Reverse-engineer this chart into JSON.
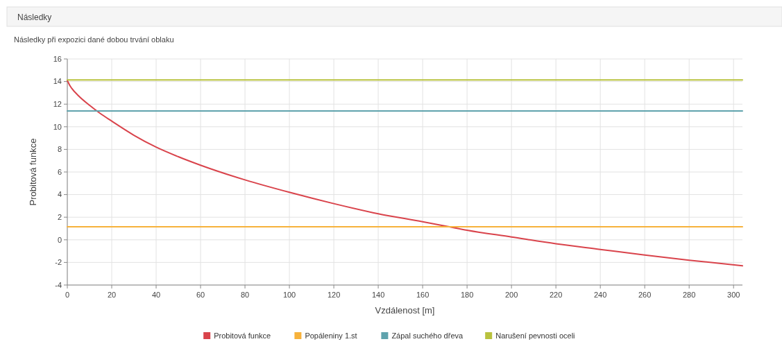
{
  "chart_data": {
    "type": "line",
    "title": "Následky",
    "subtitle": "Následky při expozici dané dobou trvání oblaku",
    "xlabel": "Vzdálenost [m]",
    "ylabel": "Probitová funkce",
    "xlim": [
      0,
      304
    ],
    "xticks": [
      0,
      20,
      40,
      60,
      80,
      100,
      120,
      140,
      160,
      180,
      200,
      220,
      240,
      260,
      280,
      300
    ],
    "ylim": [
      -4,
      16
    ],
    "yticks": [
      -4,
      -2,
      0,
      2,
      4,
      6,
      8,
      10,
      12,
      14,
      16
    ],
    "grid": true,
    "legend": "bottom",
    "marker": "none",
    "line_style": "solid",
    "series": [
      {
        "name": "Probitová funkce",
        "color": "#d9434b",
        "x": [
          0,
          1,
          2,
          5,
          10,
          15,
          20,
          30,
          40,
          50,
          60,
          80,
          100,
          120,
          140,
          160,
          172,
          180,
          200,
          220,
          240,
          260,
          280,
          304
        ],
        "values": [
          14.1,
          13.7,
          13.4,
          12.75,
          11.9,
          11.15,
          10.5,
          9.25,
          8.2,
          7.35,
          6.6,
          5.3,
          4.2,
          3.2,
          2.3,
          1.6,
          1.15,
          0.85,
          0.25,
          -0.35,
          -0.85,
          -1.35,
          -1.8,
          -2.3
        ]
      },
      {
        "name": "Popáleniny 1.st",
        "color": "#f7b23b",
        "x": [
          0,
          304
        ],
        "values": [
          1.15,
          1.15
        ]
      },
      {
        "name": "Zápal suchého dřeva",
        "color": "#5fa3ad",
        "x": [
          0,
          304
        ],
        "values": [
          11.4,
          11.4
        ]
      },
      {
        "name": "Narušení pevnosti oceli",
        "color": "#b9c23e",
        "x": [
          0,
          304
        ],
        "values": [
          14.15,
          14.15
        ]
      }
    ]
  }
}
